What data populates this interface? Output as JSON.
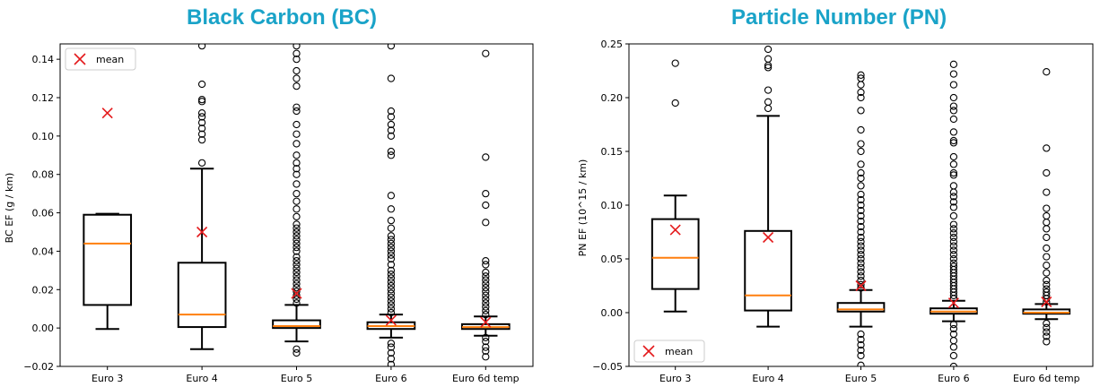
{
  "chart_data": [
    {
      "type": "box",
      "title": "Black Carbon (BC)",
      "ylabel": "BC EF (g / km)",
      "ylim": [
        -0.02,
        0.148
      ],
      "yticks": [
        -0.02,
        0.0,
        0.02,
        0.04,
        0.06,
        0.08,
        0.1,
        0.12,
        0.14
      ],
      "ytick_labels": [
        "−0.02",
        "0.00",
        "0.02",
        "0.04",
        "0.06",
        "0.08",
        "0.10",
        "0.12",
        "0.14"
      ],
      "legend": {
        "entries": [
          "mean"
        ],
        "position": "upper-left"
      },
      "categories": [
        "Euro 3",
        "Euro 4",
        "Euro 5",
        "Euro 6",
        "Euro 6d temp"
      ],
      "boxes": [
        {
          "q1": 0.012,
          "median": 0.044,
          "q3": 0.059,
          "whisker_low": -0.0005,
          "whisker_high": 0.0595,
          "mean": 0.112,
          "fliers": []
        },
        {
          "q1": 0.0005,
          "median": 0.007,
          "q3": 0.034,
          "whisker_low": -0.011,
          "whisker_high": 0.083,
          "mean": 0.05,
          "fliers": [
            0.086,
            0.098,
            0.101,
            0.104,
            0.107,
            0.11,
            0.112,
            0.118,
            0.119,
            0.127,
            0.147
          ]
        },
        {
          "q1": 0.0,
          "median": 0.001,
          "q3": 0.004,
          "whisker_low": -0.007,
          "whisker_high": 0.012,
          "mean": 0.018,
          "fliers": [
            -0.013,
            -0.011,
            0.013,
            0.015,
            0.017,
            0.019,
            0.021,
            0.023,
            0.025,
            0.027,
            0.029,
            0.031,
            0.033,
            0.035,
            0.037,
            0.04,
            0.042,
            0.044,
            0.046,
            0.048,
            0.05,
            0.052,
            0.054,
            0.058,
            0.062,
            0.066,
            0.07,
            0.075,
            0.08,
            0.083,
            0.086,
            0.09,
            0.096,
            0.101,
            0.106,
            0.113,
            0.115,
            0.126,
            0.13,
            0.134,
            0.14,
            0.143,
            0.147
          ]
        },
        {
          "q1": -0.0005,
          "median": 0.001,
          "q3": 0.003,
          "whisker_low": -0.005,
          "whisker_high": 0.007,
          "mean": 0.004,
          "fliers": [
            -0.019,
            -0.016,
            -0.013,
            -0.01,
            -0.008,
            0.008,
            0.01,
            0.012,
            0.014,
            0.016,
            0.018,
            0.02,
            0.022,
            0.024,
            0.026,
            0.028,
            0.03,
            0.033,
            0.036,
            0.038,
            0.04,
            0.042,
            0.044,
            0.046,
            0.048,
            0.052,
            0.056,
            0.062,
            0.069,
            0.09,
            0.092,
            0.1,
            0.103,
            0.106,
            0.11,
            0.113,
            0.13,
            0.147
          ]
        },
        {
          "q1": -0.0005,
          "median": 0.0005,
          "q3": 0.002,
          "whisker_low": -0.004,
          "whisker_high": 0.006,
          "mean": 0.003,
          "fliers": [
            -0.015,
            -0.012,
            -0.01,
            -0.007,
            -0.005,
            0.007,
            0.009,
            0.011,
            0.013,
            0.015,
            0.017,
            0.019,
            0.021,
            0.023,
            0.025,
            0.027,
            0.029,
            0.033,
            0.035,
            0.055,
            0.064,
            0.07,
            0.089,
            0.143
          ]
        }
      ]
    },
    {
      "type": "box",
      "title": "Particle Number (PN)",
      "ylabel": "PN EF (10^15 / km)",
      "ylim": [
        -0.05,
        0.25
      ],
      "yticks": [
        -0.05,
        0.0,
        0.05,
        0.1,
        0.15,
        0.2,
        0.25
      ],
      "ytick_labels": [
        "−0.05",
        "0.00",
        "0.05",
        "0.10",
        "0.15",
        "0.20",
        "0.25"
      ],
      "legend": {
        "entries": [
          "mean"
        ],
        "position": "lower-left"
      },
      "categories": [
        "Euro 3",
        "Euro 4",
        "Euro 5",
        "Euro 6",
        "Euro 6d temp"
      ],
      "boxes": [
        {
          "q1": 0.022,
          "median": 0.051,
          "q3": 0.087,
          "whisker_low": 0.001,
          "whisker_high": 0.109,
          "mean": 0.077,
          "fliers": [
            0.195,
            0.232
          ]
        },
        {
          "q1": 0.002,
          "median": 0.016,
          "q3": 0.076,
          "whisker_low": -0.013,
          "whisker_high": 0.183,
          "mean": 0.07,
          "fliers": [
            0.19,
            0.196,
            0.207,
            0.228,
            0.23,
            0.236,
            0.245
          ]
        },
        {
          "q1": 0.001,
          "median": 0.003,
          "q3": 0.009,
          "whisker_low": -0.013,
          "whisker_high": 0.021,
          "mean": 0.025,
          "fliers": [
            -0.049,
            -0.04,
            -0.035,
            -0.03,
            -0.025,
            -0.02,
            0.023,
            0.026,
            0.03,
            0.034,
            0.038,
            0.042,
            0.046,
            0.05,
            0.054,
            0.058,
            0.062,
            0.066,
            0.07,
            0.075,
            0.08,
            0.085,
            0.09,
            0.095,
            0.1,
            0.105,
            0.11,
            0.118,
            0.125,
            0.13,
            0.138,
            0.15,
            0.157,
            0.17,
            0.188,
            0.2,
            0.205,
            0.212,
            0.218,
            0.221
          ]
        },
        {
          "q1": -0.001,
          "median": 0.001,
          "q3": 0.004,
          "whisker_low": -0.008,
          "whisker_high": 0.011,
          "mean": 0.009,
          "fliers": [
            -0.05,
            -0.04,
            -0.032,
            -0.026,
            -0.02,
            -0.015,
            -0.011,
            0.013,
            0.016,
            0.019,
            0.022,
            0.025,
            0.028,
            0.031,
            0.034,
            0.037,
            0.04,
            0.043,
            0.046,
            0.05,
            0.054,
            0.058,
            0.062,
            0.066,
            0.07,
            0.074,
            0.078,
            0.082,
            0.09,
            0.098,
            0.103,
            0.108,
            0.112,
            0.118,
            0.128,
            0.13,
            0.138,
            0.145,
            0.158,
            0.16,
            0.168,
            0.18,
            0.188,
            0.192,
            0.2,
            0.212,
            0.222,
            0.231
          ]
        },
        {
          "q1": -0.001,
          "median": 0.0,
          "q3": 0.003,
          "whisker_low": -0.006,
          "whisker_high": 0.008,
          "mean": 0.01,
          "fliers": [
            -0.027,
            -0.022,
            -0.018,
            -0.014,
            -0.01,
            0.01,
            0.013,
            0.016,
            0.019,
            0.022,
            0.026,
            0.03,
            0.037,
            0.044,
            0.052,
            0.06,
            0.07,
            0.078,
            0.084,
            0.09,
            0.097,
            0.112,
            0.13,
            0.153,
            0.224
          ]
        }
      ]
    }
  ],
  "colors": {
    "title": "#1aa3c8",
    "median": "#ff7f0e",
    "mean": "#e41a1c",
    "box": "#000000"
  }
}
